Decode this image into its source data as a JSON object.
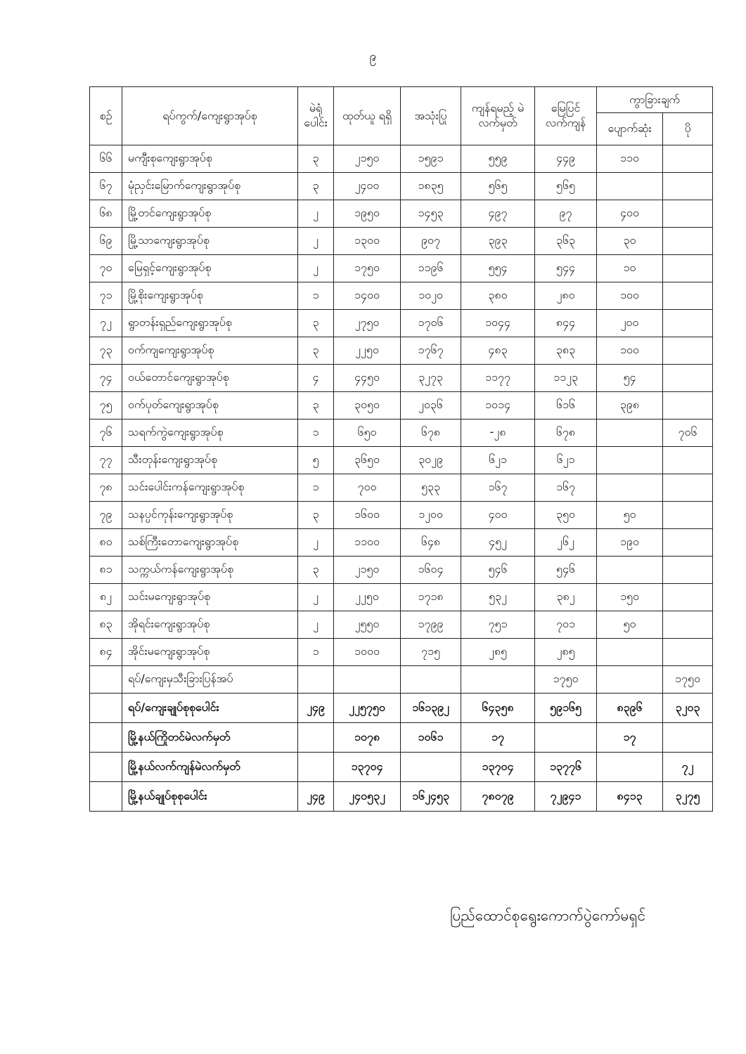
{
  "page_number": "၉",
  "table": {
    "headers": {
      "serial": "စဉ်",
      "ward": "ရပ်ကွက်/ကျေးရွာအုပ်စု",
      "stations": "မဲရုံ ပေါင်း",
      "received": "ထုတ်ယူ ရရှိ",
      "used": "အသုံးပြု",
      "should_remain": "ကျန်ရမည့် မဲလက်မှတ်",
      "actual_remain": "မြေပြင် လက်ကျန်",
      "difference": "ကွာခြားချက်",
      "missing": "ပျောက်ဆုံး",
      "excess": "ပို"
    },
    "rows": [
      [
        "၆၆",
        "မကျီးစုကျေးရွာအုပ်စု",
        "၃",
        "၂၁၅၀",
        "၁၅၉၁",
        "၅၅၉",
        "၄၄၉",
        "၁၁၀",
        ""
      ],
      [
        "၆၇",
        "မုံညှင်းမြောက်ကျေးရွာအုပ်စု",
        "၃",
        "၂၄၀၀",
        "၁၈၃၅",
        "၅၆၅",
        "၅၆၅",
        "",
        ""
      ],
      [
        "၆၈",
        "မြို့တင်ကျေးရွာအုပ်စု",
        "၂",
        "၁၉၅၀",
        "၁၄၅၃",
        "၄၉၇",
        "၉၇",
        "၄၀၀",
        ""
      ],
      [
        "၆၉",
        "မြို့သာကျေးရွာအုပ်စု",
        "၂",
        "၁၃၀၀",
        "၉၀၇",
        "၃၉၃",
        "၃၆၃",
        "၃၀",
        ""
      ],
      [
        "၇၀",
        "မြေရှင့်ကျေးရွာအုပ်စု",
        "၂",
        "၁၇၅၀",
        "၁၁၉၆",
        "၅၅၄",
        "၅၄၄",
        "၁၀",
        ""
      ],
      [
        "၇၁",
        "မြို့စိုးကျေးရွာအုပ်စု",
        "၁",
        "၁၄၀၀",
        "၁၀၂၀",
        "၃၈၀",
        "၂၈၀",
        "၁၀၀",
        ""
      ],
      [
        "၇၂",
        "ရွာတန်းရှည်ကျေးရွာအုပ်စု",
        "၃",
        "၂၇၅၀",
        "၁၇၀၆",
        "၁၀၄၄",
        "၈၄၄",
        "၂၀၀",
        ""
      ],
      [
        "၇၃",
        "ဝက်ကျကျေးရွာအုပ်စု",
        "၃",
        "၂၂၅၀",
        "၁၇၆၇",
        "၄၈၃",
        "၃၈၃",
        "၁၀၀",
        ""
      ],
      [
        "၇၄",
        "ဝယ်တောင်ကျေးရွာအုပ်စု",
        "၄",
        "၄၄၅၀",
        "၃၂၇၃",
        "၁၁၇၇",
        "၁၁၂၃",
        "၅၄",
        ""
      ],
      [
        "၇၅",
        "ဝက်ပုတ်ကျေးရွာအုပ်စု",
        "၃",
        "၃၀၅၀",
        "၂၀၃၆",
        "၁၀၁၄",
        "၆၁၆",
        "၃၉၈",
        ""
      ],
      [
        "၇၆",
        "သရက်ကွဲကျေးရွာအုပ်စု",
        "၁",
        "၆၅၀",
        "၆၇၈",
        "-၂၈",
        "၆၇၈",
        "",
        "၇၀၆"
      ],
      [
        "၇၇",
        "သီးတုန်းကျေးရွာအုပ်စု",
        "၅",
        "၃၆၅၀",
        "၃၀၂၉",
        "၆၂၁",
        "၆၂၁",
        "",
        ""
      ],
      [
        "၇၈",
        "သင်းပေါင်းကန်ကျေးရွာအုပ်စု",
        "၁",
        "၇၀၀",
        "၅၃၃",
        "၁၆၇",
        "၁၆၇",
        "",
        ""
      ],
      [
        "၇၉",
        "သနပ္ပင်ကုန်းကျေးရွာအုပ်စု",
        "၃",
        "၁၆၀၀",
        "၁၂၀၀",
        "၄၀၀",
        "၃၅၀",
        "၅၀",
        ""
      ],
      [
        "၈၀",
        "သစ်ကြီးတောကျေးရွာအုပ်စု",
        "၂",
        "၁၁၀၀",
        "၆၄၈",
        "၄၅၂",
        "၂၆၂",
        "၁၉၀",
        ""
      ],
      [
        "၈၁",
        "သက္ကယ်ကန်ကျေးရွာအုပ်စု",
        "၃",
        "၂၁၅၀",
        "၁၆၀၄",
        "၅၄၆",
        "၅၄၆",
        "",
        ""
      ],
      [
        "၈၂",
        "သင်းမကျေးရွာအုပ်စု",
        "၂",
        "၂၂၅၀",
        "၁၇၁၈",
        "၅၃၂",
        "၃၈၂",
        "၁၅၀",
        ""
      ],
      [
        "၈၃",
        "အိုရင်းကျေးရွာအုပ်စု",
        "၂",
        "၂၅၅၀",
        "၁၇၉၉",
        "၇၅၁",
        "၇၀၁",
        "၅၀",
        ""
      ],
      [
        "၈၄",
        "အိုင်းမကျေးရွာအုပ်စု",
        "၁",
        "၁၀၀၀",
        "၇၁၅",
        "၂၈၅",
        "၂၈၅",
        "",
        ""
      ],
      [
        "",
        "ရပ်/ကျေးမှသီးခြားပြန်အပ်",
        "",
        "",
        "",
        "",
        "၁၇၅၀",
        "",
        "၁၇၅၀"
      ]
    ],
    "summary_rows": [
      [
        "",
        "ရပ်/ကျေးချုပ်စုစုပေါင်း",
        "၂၄၉",
        "၂၂၅၇၅၀",
        "၁၆၁၃၉၂",
        "၆၄၃၅၈",
        "၅၉၁၆၅",
        "၈၃၉၆",
        "၃၂၀၃"
      ],
      [
        "",
        "မြို့နယ်ကြိုတင်မဲလက်မှတ်",
        "",
        "၁၀၇၈",
        "၁၀၆၁",
        "၁၇",
        "",
        "၁၇",
        ""
      ],
      [
        "",
        "မြို့နယ်လက်ကျန်မဲလက်မှတ်",
        "",
        "၁၃၇၀၄",
        "",
        "၁၃၇၀၄",
        "၁၃၇၇၆",
        "",
        "၇၂"
      ],
      [
        "",
        "မြို့နယ်ချုပ်စုစုပေါင်း",
        "၂၄၉",
        "၂၄၀၅၃၂",
        "၁၆၂၄၅၃",
        "၇၈၀၇၉",
        "၇၂၉၄၁",
        "၈၄၁၃",
        "၃၂၇၅"
      ]
    ]
  },
  "signature": "ပြည်ထောင်စုရွေးကောက်ပွဲကော်မရှင်"
}
